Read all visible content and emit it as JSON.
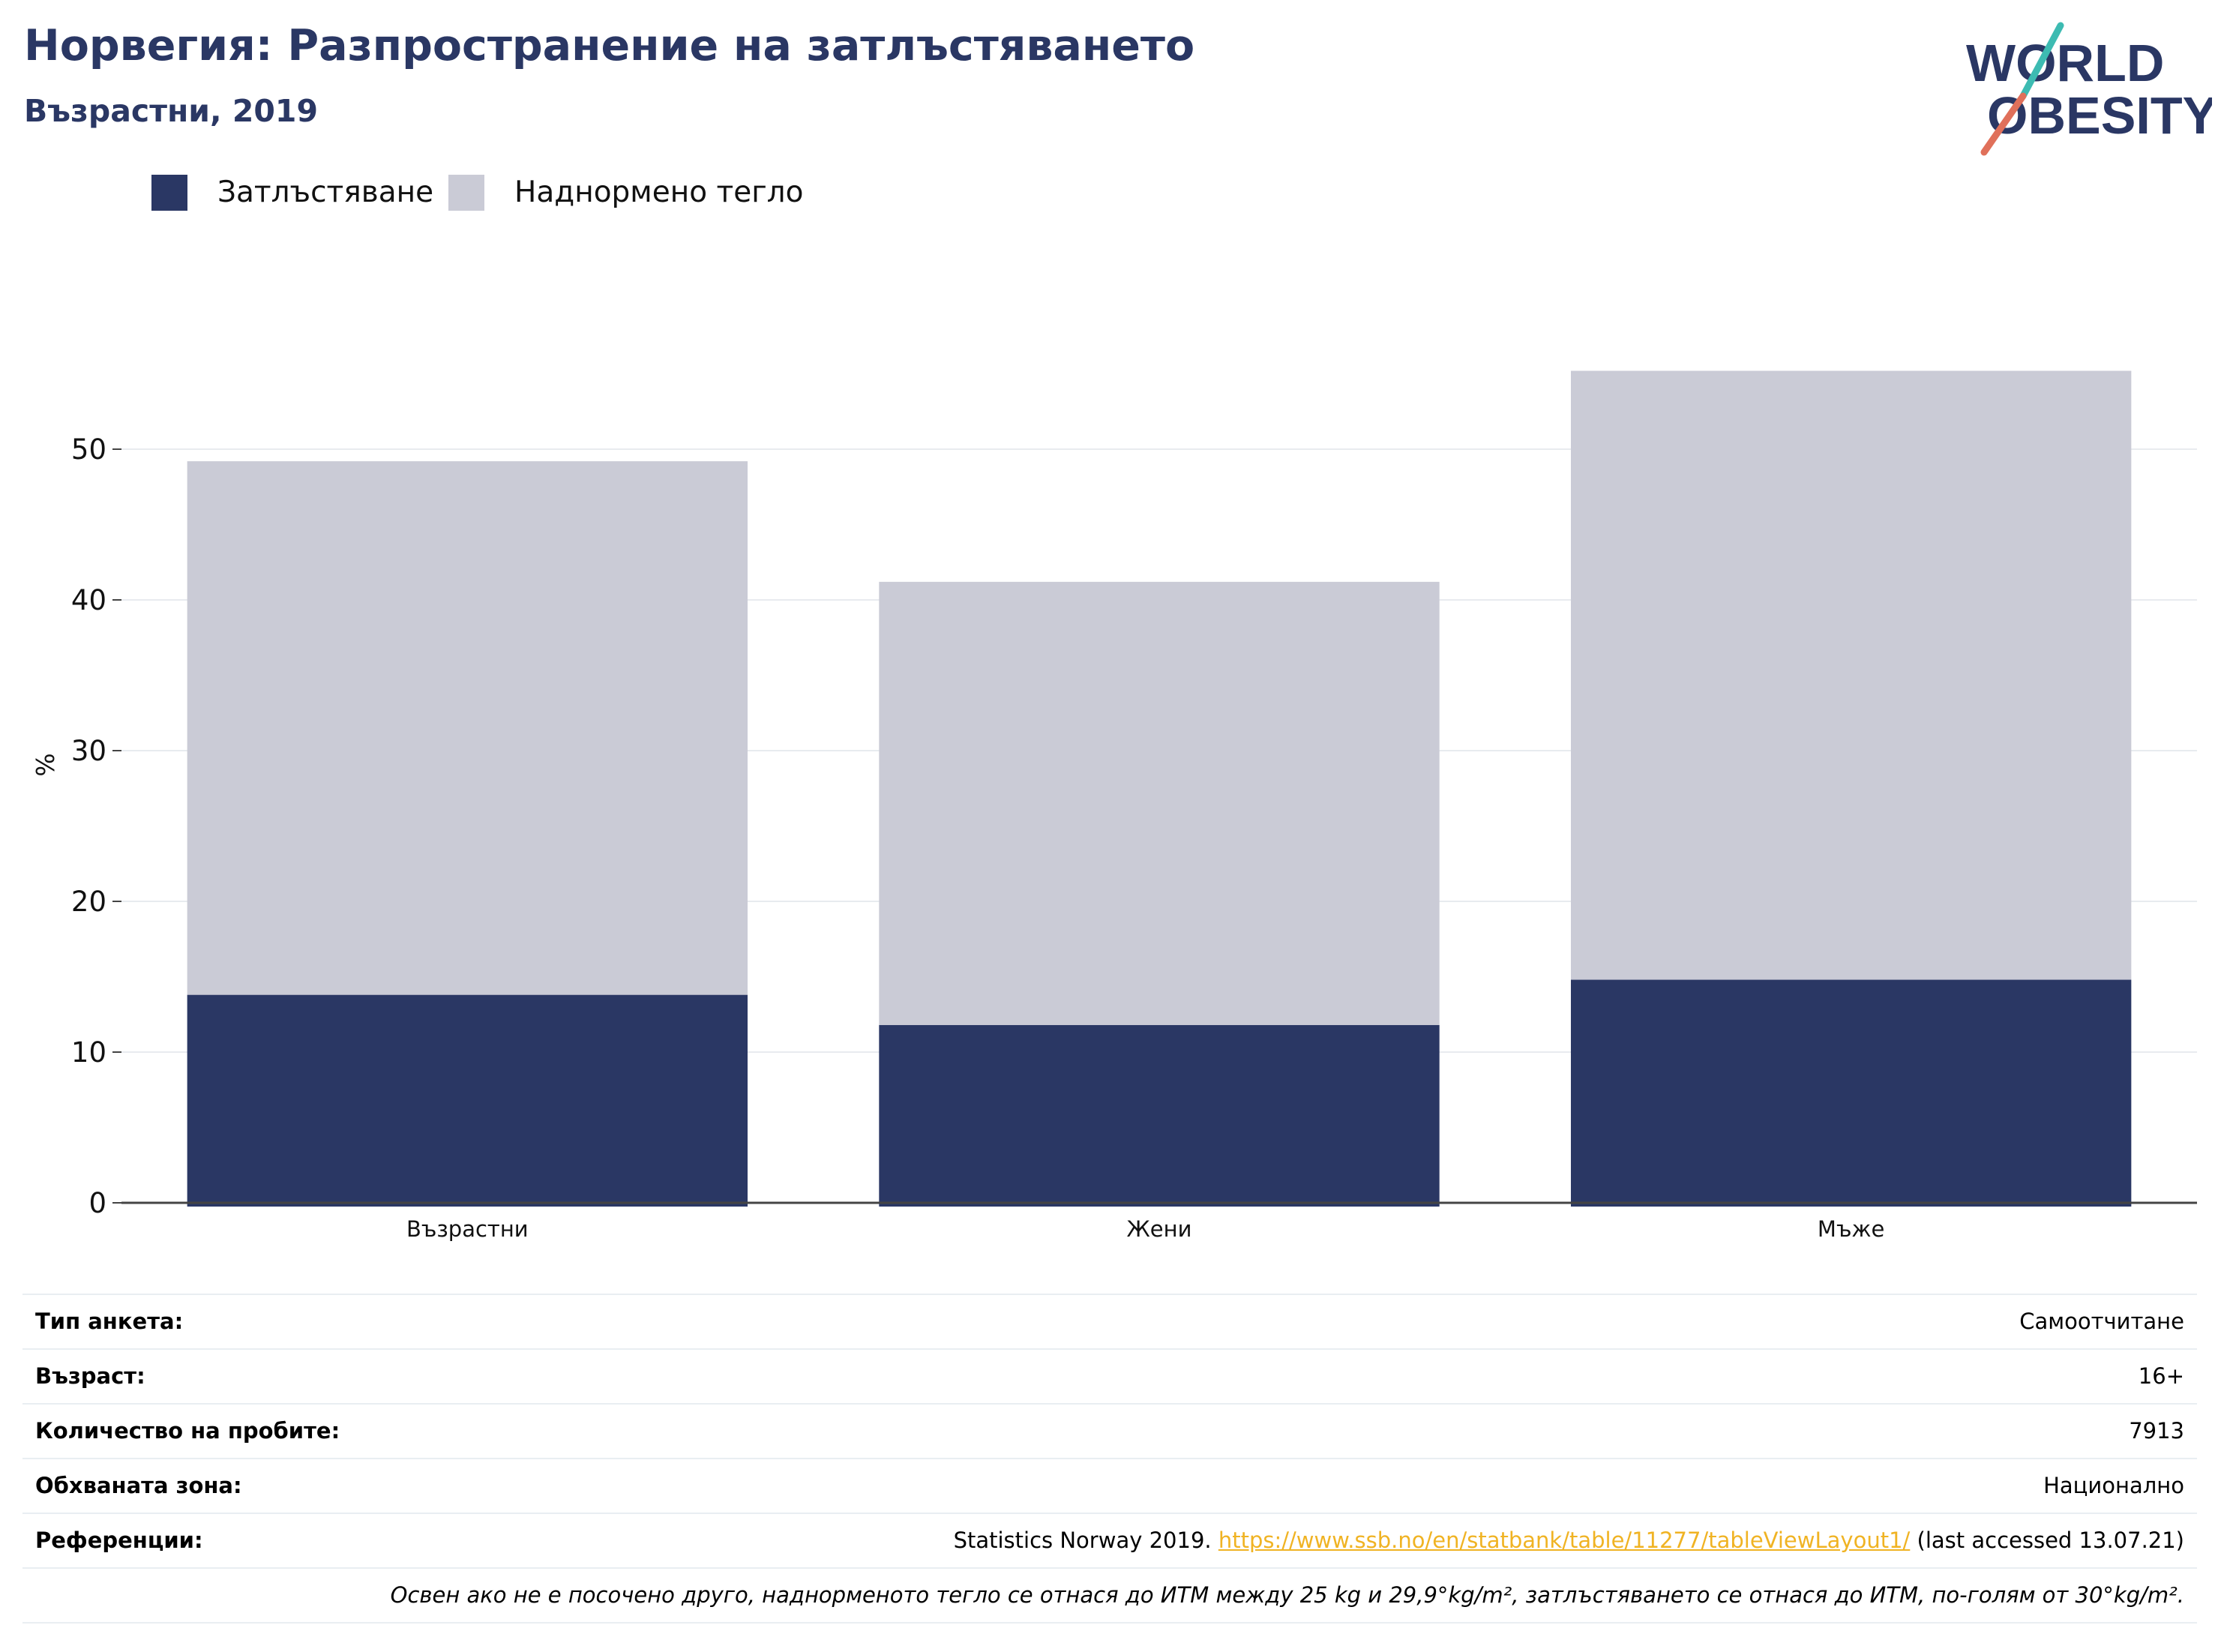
{
  "header": {
    "title": "Норвегия: Разпространение на затлъстяването",
    "subtitle": "Възрастни, 2019",
    "logo_text_line1": "WORLD",
    "logo_text_line2": "OBESITY"
  },
  "colors": {
    "obesity": "#2a3764",
    "overweight": "#cacbd6",
    "title": "#2a3764",
    "link": "#f0b323",
    "logo_teal": "#3dbbb2",
    "logo_coral": "#e0705a"
  },
  "legend": [
    {
      "label": "Затлъстяване",
      "color": "#2a3764"
    },
    {
      "label": "Наднормено тегло",
      "color": "#cacbd6"
    }
  ],
  "chart_data": {
    "type": "bar",
    "stacked": true,
    "categories": [
      "Възрастни",
      "Жени",
      "Мъже"
    ],
    "series": [
      {
        "name": "Затлъстяване",
        "values": [
          13.8,
          11.8,
          14.8
        ]
      },
      {
        "name": "Наднормено тегло",
        "values": [
          35.4,
          29.4,
          40.4
        ]
      }
    ],
    "ylabel": "%",
    "ylim": [
      0,
      55.5
    ],
    "yticks": [
      0,
      10,
      20,
      30,
      40,
      50
    ],
    "grid": true,
    "legend_position": "top-left"
  },
  "info": {
    "survey_type": {
      "label": "Тип анкета:",
      "value": "Самоотчитане"
    },
    "age": {
      "label": "Възраст:",
      "value": "16+"
    },
    "sample_size": {
      "label": "Количество на пробите:",
      "value": "7913"
    },
    "coverage": {
      "label": "Обхваната зона:",
      "value": "Национално"
    },
    "references": {
      "label": "Референции:",
      "prefix": "Statistics Norway 2019. ",
      "link": "https://www.ssb.no/en/statbank/table/11277/tableViewLayout1/",
      "suffix": " (last accessed 13.07.21)"
    },
    "note": "Освен ако не е посочено друго, наднорменото тегло се отнася до ИТМ между 25 kg и 29,9°kg/m², затлъстяването се отнася до ИТМ, по-голям от 30°kg/m²."
  }
}
